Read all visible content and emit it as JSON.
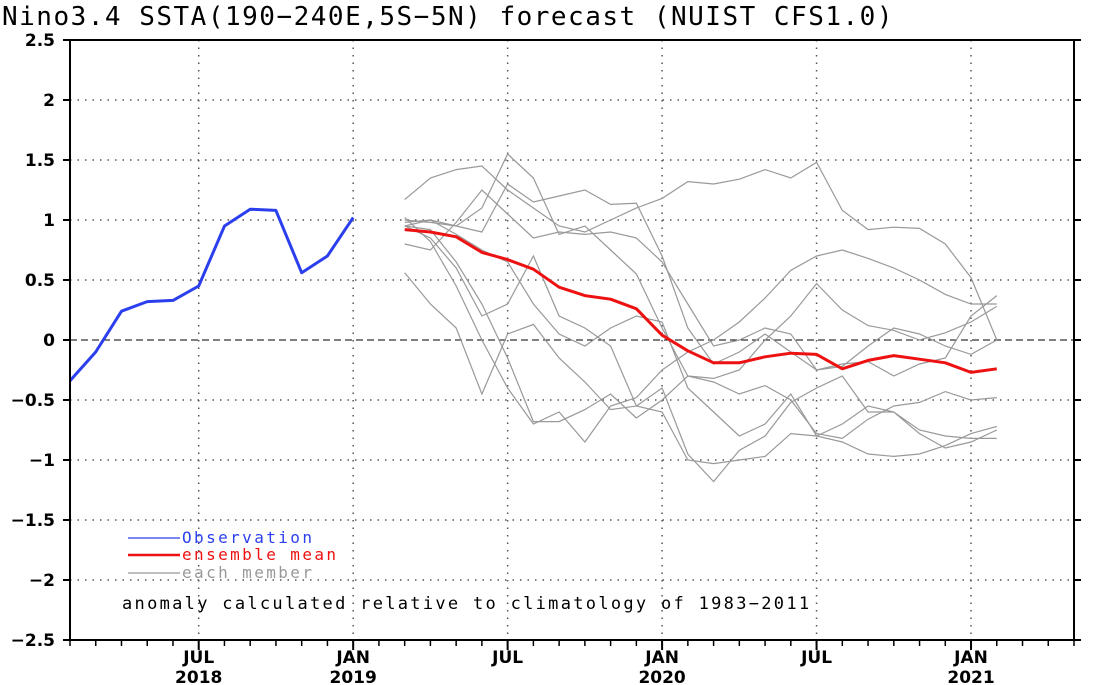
{
  "chart_data": {
    "type": "line",
    "title": "Nino3.4 SSTA(190-240E,5S-5N) forecast (NUIST CFS1.0)",
    "xlabel": "",
    "ylabel": "",
    "ylim": [
      -2.5,
      2.5
    ],
    "xlim": [
      "2018-02",
      "2021-05"
    ],
    "y_ticks": [
      "2.5",
      "2",
      "1.5",
      "1",
      "0.5",
      "0",
      "-0.5",
      "-1",
      "-1.5",
      "-2",
      "-2.5"
    ],
    "x_ticks": [
      {
        "month": "2018-07",
        "label": "JUL",
        "year": "2018"
      },
      {
        "month": "2019-01",
        "label": "JAN",
        "year": "2019"
      },
      {
        "month": "2019-07",
        "label": "JUL",
        "year": ""
      },
      {
        "month": "2020-01",
        "label": "JAN",
        "year": "2020"
      },
      {
        "month": "2020-07",
        "label": "JUL",
        "year": ""
      },
      {
        "month": "2021-01",
        "label": "JAN",
        "year": "2021"
      }
    ],
    "grid": true,
    "zero_line": true,
    "legend_position": "bottom-left",
    "colors": {
      "observation": "#2b3fee",
      "ensemble_mean": "#ee1111",
      "member": "#999999",
      "axis": "#000000"
    },
    "legend": [
      {
        "key": "observation",
        "label": "Observation"
      },
      {
        "key": "ensemble_mean",
        "label": "ensemble mean"
      },
      {
        "key": "member",
        "label": "each member"
      }
    ],
    "annotation": "anomaly calculated relative to climatology of 1983-2011",
    "observation": {
      "start": "2018-02",
      "values": [
        -0.34,
        -0.1,
        0.24,
        0.32,
        0.33,
        0.45,
        0.95,
        1.09,
        1.08,
        0.56,
        0.7,
        1.02
      ]
    },
    "ensemble_mean": {
      "start": "2019-03",
      "values": [
        0.92,
        0.9,
        0.86,
        0.73,
        0.67,
        0.59,
        0.44,
        0.37,
        0.34,
        0.26,
        0.04,
        -0.09,
        -0.19,
        -0.19,
        -0.14,
        -0.11,
        -0.12,
        -0.24,
        -0.17,
        -0.13,
        -0.16,
        -0.19,
        -0.27,
        -0.24
      ]
    },
    "members": [
      {
        "start": "2019-03",
        "values": [
          1.17,
          1.35,
          1.42,
          1.45,
          1.25,
          1.1,
          0.95,
          0.9,
          1.0,
          1.1,
          1.18,
          1.32,
          1.3,
          1.34,
          1.42,
          1.35,
          1.48,
          1.08,
          0.92,
          0.94,
          0.93,
          0.8,
          0.52,
          0.0
        ]
      },
      {
        "start": "2019-03",
        "values": [
          0.8,
          0.75,
          0.98,
          1.25,
          1.05,
          0.85,
          0.9,
          0.88,
          0.9,
          0.85,
          0.65,
          0.3,
          -0.05,
          0.0,
          0.1,
          0.05,
          -0.25,
          -0.22,
          -0.05,
          0.1,
          0.05,
          -0.05,
          -0.12,
          0.0
        ]
      },
      {
        "start": "2019-03",
        "values": [
          1.0,
          0.98,
          0.95,
          0.9,
          1.3,
          1.15,
          1.2,
          1.25,
          1.13,
          1.14,
          0.7,
          0.1,
          -0.2,
          -0.1,
          0.05,
          -0.1,
          -0.25,
          -0.2,
          -0.18,
          -0.3,
          -0.2,
          -0.15,
          0.2,
          0.37
        ]
      },
      {
        "start": "2019-03",
        "values": [
          0.95,
          0.85,
          0.6,
          0.2,
          0.3,
          0.7,
          0.2,
          0.1,
          -0.05,
          -0.55,
          -0.6,
          -1.0,
          -1.03,
          -1.0,
          -0.97,
          -0.78,
          -0.8,
          -0.7,
          -0.55,
          -0.6,
          -0.75,
          -0.8,
          -0.82,
          -0.82
        ]
      },
      {
        "start": "2019-03",
        "values": [
          0.56,
          0.3,
          0.1,
          -0.45,
          0.05,
          0.13,
          -0.15,
          -0.35,
          -0.58,
          -0.55,
          -0.4,
          -0.95,
          -1.18,
          -0.92,
          -0.8,
          -0.52,
          -0.4,
          -0.3,
          -0.6,
          -0.6,
          -0.78,
          -0.9,
          -0.85,
          -0.75
        ]
      },
      {
        "start": "2019-03",
        "values": [
          0.95,
          0.92,
          0.65,
          0.3,
          -0.15,
          -0.68,
          -0.68,
          -0.58,
          -0.45,
          -0.65,
          -0.5,
          -0.3,
          -0.35,
          -0.45,
          -0.38,
          -0.5,
          -0.78,
          -0.82,
          -0.66,
          -0.55,
          -0.52,
          -0.43,
          -0.5,
          -0.48
        ]
      },
      {
        "start": "2019-03",
        "values": [
          1.02,
          0.82,
          0.45,
          0.0,
          -0.4,
          -0.7,
          -0.6,
          -0.85,
          -0.55,
          -0.48,
          -0.25,
          -0.1,
          0.0,
          0.15,
          0.35,
          0.58,
          0.7,
          0.75,
          0.68,
          0.6,
          0.5,
          0.38,
          0.3,
          0.3
        ]
      },
      {
        "start": "2019-03",
        "values": [
          0.95,
          1.0,
          0.95,
          1.1,
          1.55,
          1.35,
          0.88,
          0.95,
          0.75,
          0.55,
          0.1,
          -0.3,
          -0.32,
          -0.25,
          0.0,
          0.2,
          0.47,
          0.25,
          0.12,
          0.08,
          0.0,
          0.06,
          0.15,
          0.28
        ]
      },
      {
        "start": "2019-03",
        "values": [
          0.98,
          1.0,
          0.88,
          0.75,
          0.65,
          0.3,
          0.05,
          -0.05,
          0.1,
          0.2,
          0.15,
          -0.4,
          -0.6,
          -0.8,
          -0.7,
          -0.45,
          -0.8,
          -0.85,
          -0.95,
          -0.97,
          -0.95,
          -0.88,
          -0.78,
          -0.72
        ]
      }
    ]
  }
}
